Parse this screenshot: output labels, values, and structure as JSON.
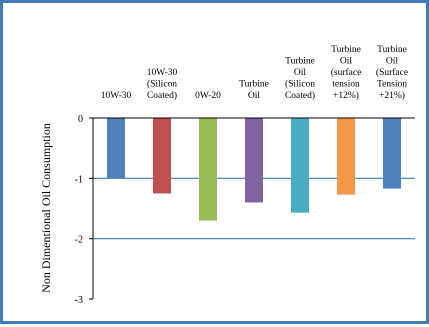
{
  "chart_data": {
    "type": "bar",
    "title": "",
    "xlabel": "",
    "ylabel": "Non Dimentional Oil Consumption",
    "ylim": [
      -3,
      0
    ],
    "yticks": [
      0,
      -1,
      -2,
      -3
    ],
    "grid": true,
    "categories": [
      [
        "10W-30"
      ],
      [
        "10W-30",
        "(Silicon",
        "Coated)"
      ],
      [
        "0W-20"
      ],
      [
        "Turbine",
        "Oil"
      ],
      [
        "Turbine",
        "Oil",
        "(Silicon",
        "Coated)"
      ],
      [
        "Turbine",
        "Oil",
        "(surface",
        "tension",
        "+12%)"
      ],
      [
        "Turbine",
        "Oil",
        "(Surface",
        "Tension",
        "+21%)"
      ]
    ],
    "values": [
      -1.0,
      -1.25,
      -1.7,
      -1.4,
      -1.57,
      -1.27,
      -1.17
    ],
    "colors": [
      "#4f81bd",
      "#c0504d",
      "#9bbb59",
      "#8064a2",
      "#4bacc6",
      "#f79646",
      "#4f81bd"
    ]
  }
}
